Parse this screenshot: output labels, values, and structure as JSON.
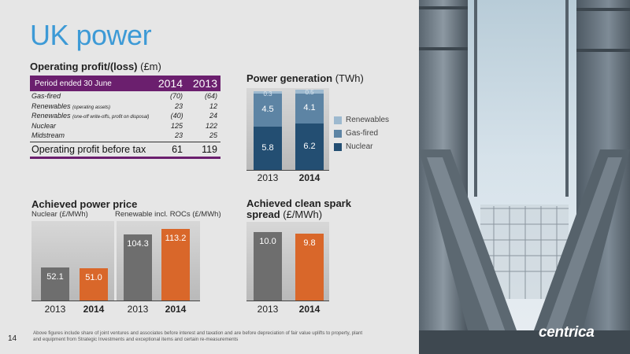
{
  "slide": {
    "title": "UK power",
    "page_number": "14",
    "footnote": "Above figures include share of joint ventures and associates before interest and taxation and are before depreciation of fair value uplifts to property, plant and equipment from Strategic Investments and exceptional items and certain re-measurements",
    "logo_text": "centrica"
  },
  "colors": {
    "purple": "#6b1f6e",
    "title_blue": "#3d9ad6",
    "grey_bar": "#6e6e6e",
    "orange_bar": "#d9672a",
    "renewables": "#9db9cf",
    "gas_fired": "#5d84a4",
    "nuclear": "#234e72"
  },
  "profit_table": {
    "heading": "Operating profit/(loss)",
    "unit": "(£m)",
    "header": {
      "label": "Period ended 30 June",
      "y2014": "2014",
      "y2013": "2013"
    },
    "rows": [
      {
        "label": "Gas-fired",
        "small": "",
        "y2014": "(70)",
        "y2013": "(64)"
      },
      {
        "label": "Renewables",
        "small": "(operating assets)",
        "y2014": "23",
        "y2013": "12"
      },
      {
        "label": "Renewables",
        "small": "(one-off write-offs, profit on disposal)",
        "y2014": "(40)",
        "y2013": "24"
      },
      {
        "label": "Nuclear",
        "small": "",
        "y2014": "125",
        "y2013": "122"
      },
      {
        "label": "Midstream",
        "small": "",
        "y2014": "23",
        "y2013": "25"
      }
    ],
    "total": {
      "label": "Operating profit before tax",
      "y2014": "61",
      "y2013": "119"
    }
  },
  "chart_data": [
    {
      "id": "power-generation",
      "type": "bar",
      "stacked": true,
      "title": "Power generation",
      "unit": "(TWh)",
      "categories": [
        "2013",
        "2014"
      ],
      "series": [
        {
          "name": "Nuclear",
          "values": [
            5.8,
            6.2
          ]
        },
        {
          "name": "Gas-fired",
          "values": [
            4.5,
            4.1
          ]
        },
        {
          "name": "Renewables",
          "values": [
            0.3,
            0.5
          ]
        }
      ],
      "value_labels": {
        "Nuclear": [
          "5.8",
          "6.2"
        ],
        "Gas-fired": [
          "4.5",
          "4.1"
        ],
        "Renewables": [
          "0.3",
          "0.5"
        ]
      },
      "ylim": [
        0,
        11
      ],
      "legend_position": "right"
    },
    {
      "id": "achieved-power-price",
      "type": "bar",
      "title": "Achieved power price",
      "groups": [
        {
          "label": "Nuclear (£/MWh)",
          "categories": [
            "2013",
            "2014"
          ],
          "values": [
            52.1,
            51.0
          ],
          "value_labels": [
            "52.1",
            "51.0"
          ]
        },
        {
          "label": "Renewable incl. ROCs (£/MWh)",
          "categories": [
            "2013",
            "2014"
          ],
          "values": [
            104.3,
            113.2
          ],
          "value_labels": [
            "104.3",
            "113.2"
          ]
        }
      ],
      "ylim": [
        0,
        125
      ]
    },
    {
      "id": "clean-spark-spread",
      "type": "bar",
      "title": "Achieved clean spark",
      "title_line2": "spread",
      "unit": "(£/MWh)",
      "categories": [
        "2013",
        "2014"
      ],
      "values": [
        10.0,
        9.8
      ],
      "value_labels": [
        "10.0",
        "9.8"
      ],
      "ylim": [
        0,
        11.5
      ]
    }
  ]
}
